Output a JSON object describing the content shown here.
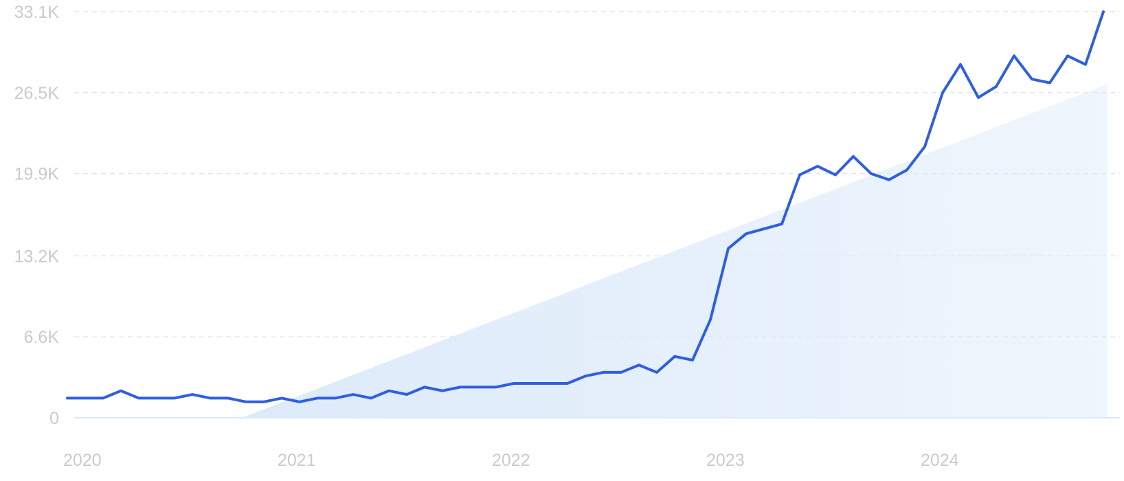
{
  "chart_data": {
    "type": "line",
    "title": "",
    "xlabel": "",
    "ylabel": "",
    "x_ticks": [
      "2020",
      "2021",
      "2022",
      "2023",
      "2024"
    ],
    "y_ticks": [
      "0",
      "6.6K",
      "13.2K",
      "19.9K",
      "26.5K",
      "33.1K"
    ],
    "y_tick_values": [
      0,
      6600,
      13200,
      19900,
      26500,
      33100
    ],
    "ylim": [
      0,
      33100
    ],
    "xlim": [
      "2020-01",
      "2024-11"
    ],
    "grid": true,
    "legend": "none",
    "colors": {
      "line": "#2f5fe0",
      "trend_fill": "#dceafa",
      "grid": "#dde6f2",
      "tick_text": "#c7cbd2"
    },
    "trend": {
      "start": {
        "x": "2020-11",
        "y": 0
      },
      "end": {
        "x": "2024-11",
        "y": 27200
      }
    },
    "series": [
      {
        "x": [
          "2020-01",
          "2020-02",
          "2020-03",
          "2020-04",
          "2020-05",
          "2020-06",
          "2020-07",
          "2020-08",
          "2020-09",
          "2020-10",
          "2020-11",
          "2020-12",
          "2021-01",
          "2021-02",
          "2021-03",
          "2021-04",
          "2021-05",
          "2021-06",
          "2021-07",
          "2021-08",
          "2021-09",
          "2021-10",
          "2021-11",
          "2021-12",
          "2022-01",
          "2022-02",
          "2022-03",
          "2022-04",
          "2022-05",
          "2022-06",
          "2022-07",
          "2022-08",
          "2022-09",
          "2022-10",
          "2022-11",
          "2022-12",
          "2023-01",
          "2023-02",
          "2023-03",
          "2023-04",
          "2023-05",
          "2023-06",
          "2023-07",
          "2023-08",
          "2023-09",
          "2023-10",
          "2023-11",
          "2023-12",
          "2024-01",
          "2024-02",
          "2024-03",
          "2024-04",
          "2024-05",
          "2024-06",
          "2024-07",
          "2024-08",
          "2024-09",
          "2024-10",
          "2024-11"
        ],
        "values": [
          1600,
          1600,
          1600,
          2200,
          1600,
          1600,
          1600,
          1900,
          1600,
          1600,
          1300,
          1300,
          1600,
          1300,
          1600,
          1600,
          1900,
          1600,
          2200,
          1900,
          2500,
          2200,
          2500,
          2500,
          2500,
          2800,
          2800,
          2800,
          2800,
          3400,
          3700,
          3700,
          4300,
          3700,
          5000,
          4700,
          8000,
          13800,
          15000,
          15400,
          15800,
          19800,
          20500,
          19800,
          21300,
          19900,
          19400,
          20200,
          22100,
          26500,
          28800,
          26100,
          27000,
          29500,
          27600,
          27300,
          29500,
          28800,
          33100
        ]
      }
    ]
  }
}
